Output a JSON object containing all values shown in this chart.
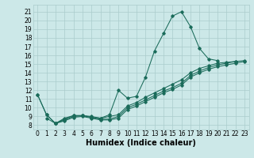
{
  "bg_color": "#cce8e8",
  "grid_color": "#aacccc",
  "line_color": "#1a6b5a",
  "xlabel": "Humidex (Indice chaleur)",
  "xlabel_fontsize": 7,
  "tick_fontsize": 5.5,
  "ylim": [
    7.5,
    21.8
  ],
  "xlim": [
    -0.5,
    23.5
  ],
  "yticks": [
    8,
    9,
    10,
    11,
    12,
    13,
    14,
    15,
    16,
    17,
    18,
    19,
    20,
    21
  ],
  "xticks": [
    0,
    1,
    2,
    3,
    4,
    5,
    6,
    7,
    8,
    9,
    10,
    11,
    12,
    13,
    14,
    15,
    16,
    17,
    18,
    19,
    20,
    21,
    22,
    23
  ],
  "line1_x": [
    0,
    1,
    2,
    3,
    4,
    5,
    6,
    7,
    8,
    9,
    10,
    11,
    12,
    13,
    14,
    15,
    16,
    17,
    18,
    19,
    20
  ],
  "line1_y": [
    11.5,
    9.2,
    8.2,
    8.8,
    9.1,
    9.1,
    9.0,
    8.8,
    9.2,
    12.0,
    11.1,
    11.3,
    13.5,
    16.5,
    18.5,
    20.5,
    21.0,
    19.3,
    16.8,
    15.6,
    15.4
  ],
  "line2_x": [
    0,
    1,
    2,
    3,
    4,
    5,
    6,
    7,
    8,
    9,
    10,
    11,
    12,
    13,
    14,
    15,
    16,
    17,
    18,
    19,
    20,
    21,
    22
  ],
  "line2_y": [
    11.5,
    9.2,
    8.2,
    8.7,
    9.1,
    9.1,
    8.9,
    8.8,
    9.0,
    9.2,
    10.2,
    10.6,
    11.2,
    11.7,
    12.2,
    12.7,
    13.2,
    14.0,
    14.5,
    14.8,
    15.1,
    15.2,
    15.3
  ],
  "line3_x": [
    1,
    2,
    3,
    4,
    5,
    6,
    7,
    8,
    9,
    10,
    11,
    12,
    13,
    14,
    15,
    16,
    17,
    18,
    19,
    20,
    21,
    22,
    23
  ],
  "line3_y": [
    8.8,
    8.2,
    8.6,
    9.0,
    9.1,
    8.9,
    8.7,
    8.7,
    9.0,
    10.0,
    10.4,
    10.9,
    11.4,
    11.9,
    12.3,
    12.8,
    13.7,
    14.2,
    14.6,
    14.9,
    15.1,
    15.3,
    15.4
  ],
  "line4_x": [
    2,
    3,
    4,
    5,
    6,
    7,
    8,
    9,
    10,
    11,
    12,
    13,
    14,
    15,
    16,
    17,
    18,
    19,
    20,
    21,
    22,
    23
  ],
  "line4_y": [
    8.2,
    8.5,
    8.9,
    9.0,
    8.8,
    8.6,
    8.6,
    8.8,
    9.8,
    10.2,
    10.7,
    11.2,
    11.7,
    12.1,
    12.6,
    13.5,
    14.0,
    14.4,
    14.7,
    14.9,
    15.1,
    15.3
  ]
}
